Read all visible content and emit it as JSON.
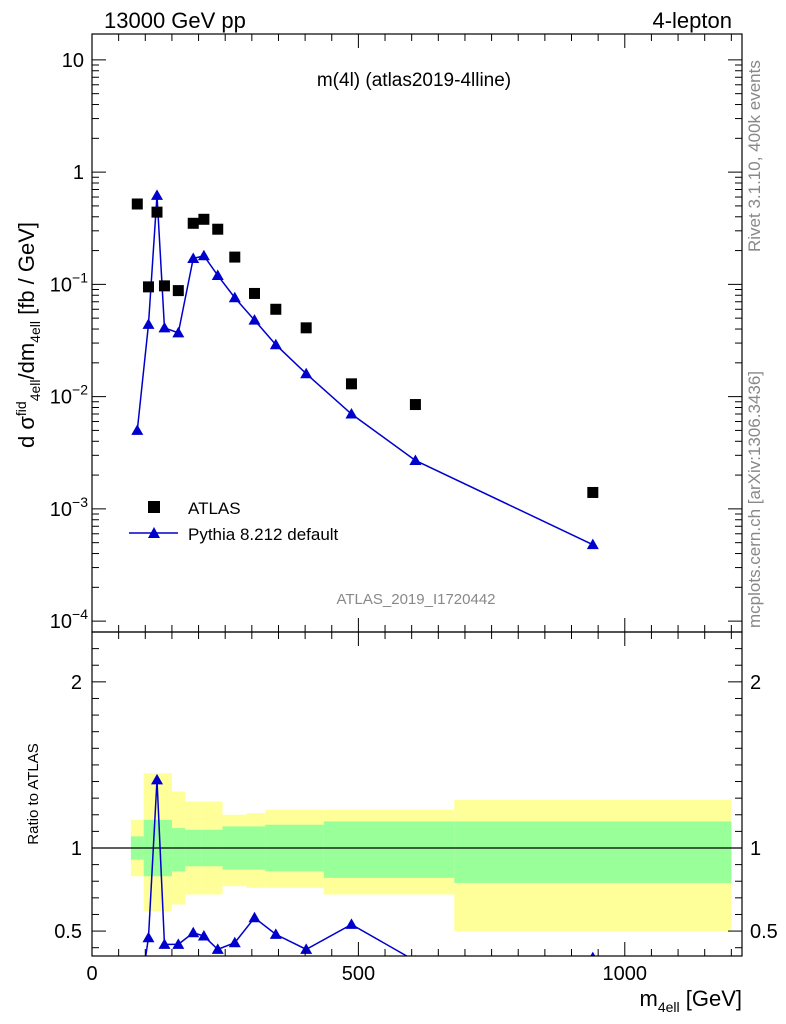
{
  "header": {
    "left": "13000 GeV pp",
    "right": "4-lepton"
  },
  "side_notes": {
    "rivet": "Rivet 3.1.10,  400k events",
    "mcplots": "mcplots.cern.ch [arXiv:1306.3436]"
  },
  "chart_data": [
    {
      "type": "scatter",
      "scale": "log",
      "title": "m(4l) (atlas2019-4lline)",
      "watermark": "ATLAS_2019_I1720442",
      "ylabel": "d σ^fid_4ell/dm_4ell [fb / GeV]",
      "xlabel": "",
      "xlim": [
        0,
        1220
      ],
      "ylim": [
        8e-05,
        17
      ],
      "yticks": [
        {
          "value": 10,
          "label": "10"
        },
        {
          "value": 1,
          "label": "1"
        },
        {
          "value": 0.1,
          "label": "10",
          "exp": "−1"
        },
        {
          "value": 0.01,
          "label": "10",
          "exp": "−2"
        },
        {
          "value": 0.001,
          "label": "10",
          "exp": "−3"
        },
        {
          "value": 0.0001,
          "label": "10",
          "exp": "−4"
        }
      ],
      "legend": {
        "position": "bottom-left",
        "entries": [
          {
            "name": "ATLAS",
            "marker": "square"
          },
          {
            "name": "Pythia 8.212 default",
            "marker": "triangle-line"
          }
        ]
      },
      "series": [
        {
          "name": "ATLAS",
          "color": "#000000",
          "x": [
            85,
            106,
            122,
            136,
            162,
            190,
            210,
            236,
            268,
            305,
            345,
            402,
            487,
            607,
            940
          ],
          "y": [
            0.52,
            0.095,
            0.44,
            0.097,
            0.088,
            0.35,
            0.38,
            0.31,
            0.175,
            0.083,
            0.06,
            0.041,
            0.013,
            0.0085,
            0.0014
          ]
        },
        {
          "name": "Pythia 8.212 default",
          "color": "#0000cc",
          "x": [
            85,
            106,
            122,
            136,
            162,
            190,
            210,
            236,
            268,
            305,
            345,
            402,
            487,
            607,
            940
          ],
          "y": [
            0.005,
            0.044,
            0.62,
            0.041,
            0.037,
            0.17,
            0.18,
            0.12,
            0.076,
            0.048,
            0.029,
            0.016,
            0.007,
            0.0027,
            0.00048
          ]
        }
      ]
    },
    {
      "type": "line",
      "title": "",
      "ylabel": "Ratio to ATLAS",
      "xlabel": "m_4ell [GeV]",
      "xlim": [
        0,
        1220
      ],
      "ylim": [
        0.35,
        2.3
      ],
      "xticks": [
        {
          "value": 0,
          "label": "0"
        },
        {
          "value": 500,
          "label": "500"
        },
        {
          "value": 1000,
          "label": "1000"
        }
      ],
      "yticks": [
        {
          "value": 0.5,
          "label": "0.5"
        },
        {
          "value": 1,
          "label": "1"
        },
        {
          "value": 2,
          "label": "2"
        }
      ],
      "reference_line": 1,
      "bands": {
        "edges": [
          73,
          97,
          115,
          130,
          150,
          175,
          205,
          245,
          290,
          325,
          435,
          680,
          1200
        ],
        "inner_lo": [
          0.93,
          0.83,
          0.83,
          0.83,
          0.86,
          0.89,
          0.89,
          0.87,
          0.87,
          0.86,
          0.82,
          0.79
        ],
        "inner_hi": [
          1.07,
          1.17,
          1.17,
          1.17,
          1.12,
          1.11,
          1.11,
          1.13,
          1.13,
          1.14,
          1.16,
          1.16
        ],
        "outer_lo": [
          0.83,
          0.62,
          0.62,
          0.62,
          0.66,
          0.72,
          0.72,
          0.77,
          0.76,
          0.76,
          0.72,
          0.5
        ],
        "outer_hi": [
          1.17,
          1.45,
          1.45,
          1.45,
          1.34,
          1.28,
          1.28,
          1.2,
          1.21,
          1.23,
          1.23,
          1.29
        ],
        "inner_color": "#99ff99",
        "outer_color": "#ffff99"
      },
      "series": [
        {
          "name": "Pythia 8.212 default",
          "color": "#0000cc",
          "x": [
            85,
            106,
            122,
            136,
            162,
            190,
            210,
            236,
            268,
            305,
            345,
            402,
            487,
            607,
            940
          ],
          "y": [
            0.01,
            0.46,
            1.41,
            0.42,
            0.42,
            0.49,
            0.47,
            0.39,
            0.43,
            0.58,
            0.48,
            0.39,
            0.54,
            0.32,
            0.34
          ]
        }
      ]
    }
  ]
}
